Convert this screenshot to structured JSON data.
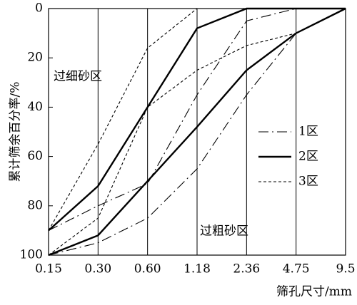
{
  "chart_data": {
    "type": "line",
    "y_label": "累计筛余百分率/%",
    "x_label": "筛孔尺寸/mm",
    "categories": [
      "0.15",
      "0.30",
      "0.60",
      "1.18",
      "2.36",
      "4.75",
      "9.5"
    ],
    "ylim": [
      0,
      100
    ],
    "yticks": [
      0,
      20,
      40,
      60,
      80,
      100
    ],
    "y_inverted": true,
    "vertical_grid": true,
    "series": [
      {
        "name": "1区",
        "color": "#000000",
        "dash": "dashdot",
        "lines": [
          [
            90,
            80,
            71,
            35,
            5,
            0,
            0
          ],
          [
            100,
            95,
            85,
            65,
            35,
            10,
            0
          ]
        ]
      },
      {
        "name": "2区",
        "color": "#000000",
        "dash": "solid",
        "lines": [
          [
            90,
            72,
            40,
            8,
            0,
            0,
            0
          ],
          [
            100,
            92,
            70,
            48,
            25,
            10,
            0
          ]
        ]
      },
      {
        "name": "3区",
        "color": "#000000",
        "dash": "short",
        "lines": [
          [
            90,
            55,
            16,
            0,
            0,
            0,
            0
          ],
          [
            100,
            85,
            40,
            25,
            15,
            10,
            0
          ]
        ]
      }
    ],
    "annotations": [
      "过细砂区",
      "过粗砂区"
    ]
  }
}
